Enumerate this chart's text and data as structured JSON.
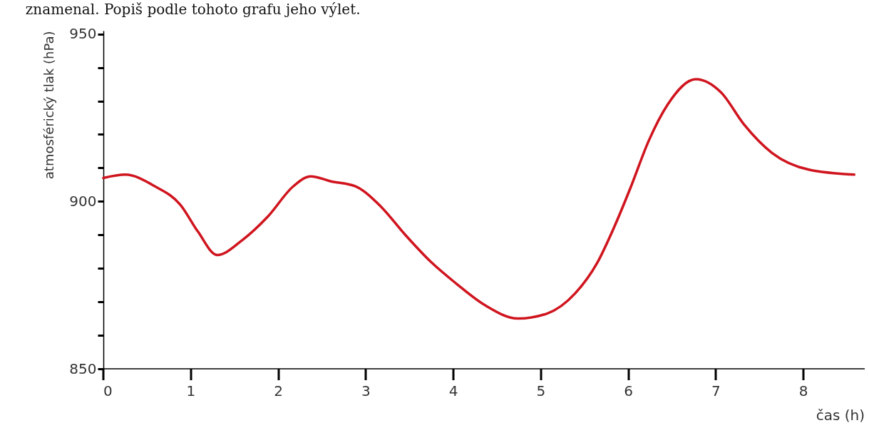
{
  "chart_data": {
    "type": "line",
    "xlabel": "čas (h)",
    "ylabel": "atmosférický tlak (hPa)",
    "annotations": [
      "znamenal. Popiš podle tohoto grafu jeho výlet."
    ],
    "x": [
      0,
      0.25,
      0.59,
      0.88,
      1.08,
      1.3,
      1.59,
      1.88,
      2.17,
      2.37,
      2.6,
      2.88,
      3.17,
      3.45,
      3.74,
      4.03,
      4.36,
      4.74,
      5.07,
      5.39,
      5.64,
      5.84,
      6.03,
      6.23,
      6.45,
      6.77,
      7.06,
      7.32,
      7.64,
      8.06,
      8.58
    ],
    "series": [
      {
        "color": "#d0141e",
        "values": [
          907,
          908,
          904.5,
          899,
          891,
          884,
          888.5,
          895.5,
          904.5,
          907.5,
          906,
          904.5,
          898.5,
          890,
          882,
          875.5,
          869,
          865,
          866.5,
          872.5,
          881.5,
          892.5,
          904.5,
          918,
          929,
          936.5,
          932.5,
          923,
          914.5,
          909.5,
          908
        ]
      }
    ],
    "xlim": [
      0,
      8.7
    ],
    "xticks": [
      0,
      1,
      2,
      3,
      4,
      5,
      6,
      7,
      8
    ],
    "ylim": [
      850,
      951
    ],
    "yticks": [
      850,
      {
        "value": 860,
        "label": null
      },
      {
        "value": 870,
        "label": null
      },
      {
        "value": 880,
        "label": null
      },
      {
        "value": 890,
        "label": null
      },
      900,
      {
        "value": 910,
        "label": null
      },
      {
        "value": 920,
        "label": null
      },
      {
        "value": 930,
        "label": null
      },
      {
        "value": 940,
        "label": null
      },
      950
    ],
    "grid": false,
    "marker": "none",
    "line_style": "solid"
  }
}
